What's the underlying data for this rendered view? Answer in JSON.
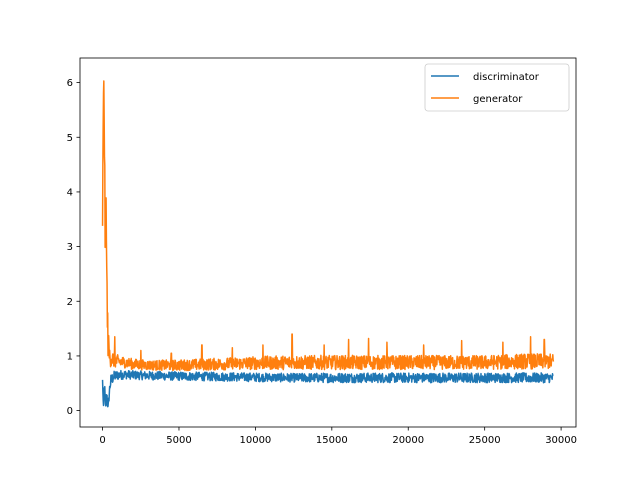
{
  "chart_data": {
    "type": "line",
    "title": "",
    "xlabel": "",
    "ylabel": "",
    "xlim": [
      -1475,
      30975
    ],
    "ylim": [
      -0.3,
      6.45
    ],
    "xticks": [
      0,
      5000,
      10000,
      15000,
      20000,
      25000,
      30000
    ],
    "yticks": [
      0,
      1,
      2,
      3,
      4,
      5,
      6
    ],
    "grid": false,
    "legend_position": "top-right",
    "series": [
      {
        "name": "discriminator",
        "color": "#1f77b4",
        "x": [
          0,
          60,
          120,
          200,
          280,
          360,
          500,
          700,
          1000,
          1500,
          2000,
          3000,
          5000,
          7500,
          10000,
          12500,
          15000,
          17500,
          20000,
          22500,
          25000,
          27500,
          29500
        ],
        "y": [
          0.55,
          0.02,
          0.45,
          0.02,
          0.3,
          0.05,
          0.5,
          0.62,
          0.65,
          0.66,
          0.65,
          0.64,
          0.63,
          0.62,
          0.61,
          0.6,
          0.6,
          0.6,
          0.6,
          0.6,
          0.6,
          0.6,
          0.6
        ],
        "band": [
          0.04,
          0.04,
          0.25,
          0.04,
          0.2,
          0.04,
          0.15,
          0.1,
          0.09,
          0.08,
          0.08,
          0.08,
          0.08,
          0.08,
          0.08,
          0.08,
          0.09,
          0.09,
          0.09,
          0.09,
          0.09,
          0.09,
          0.09
        ]
      },
      {
        "name": "generator",
        "color": "#ff7f0e",
        "x": [
          0,
          40,
          80,
          120,
          160,
          200,
          240,
          280,
          320,
          360,
          400,
          450,
          500,
          600,
          800,
          1000,
          1500,
          2000,
          3000,
          5000,
          7500,
          10000,
          12500,
          15000,
          17500,
          20000,
          22500,
          25000,
          27500,
          29500
        ],
        "y": [
          3.5,
          5.0,
          6.15,
          5.2,
          3.5,
          2.8,
          4.0,
          2.2,
          1.6,
          1.3,
          1.15,
          1.0,
          1.0,
          0.95,
          0.92,
          0.9,
          0.88,
          0.85,
          0.83,
          0.83,
          0.85,
          0.87,
          0.88,
          0.88,
          0.88,
          0.88,
          0.88,
          0.88,
          0.9,
          0.9
        ],
        "band": [
          0.3,
          0.4,
          0.1,
          0.5,
          0.6,
          0.6,
          0.2,
          0.6,
          0.5,
          0.35,
          0.25,
          0.2,
          0.2,
          0.16,
          0.14,
          0.12,
          0.1,
          0.1,
          0.09,
          0.1,
          0.11,
          0.12,
          0.13,
          0.13,
          0.13,
          0.13,
          0.13,
          0.13,
          0.14,
          0.14
        ],
        "spikes": [
          {
            "x": 800,
            "y": 1.35
          },
          {
            "x": 2500,
            "y": 1.1
          },
          {
            "x": 4500,
            "y": 1.05
          },
          {
            "x": 6500,
            "y": 1.2
          },
          {
            "x": 8500,
            "y": 1.15
          },
          {
            "x": 10500,
            "y": 1.2
          },
          {
            "x": 12400,
            "y": 1.4
          },
          {
            "x": 14500,
            "y": 1.2
          },
          {
            "x": 16100,
            "y": 1.3
          },
          {
            "x": 17400,
            "y": 1.32
          },
          {
            "x": 18600,
            "y": 1.25
          },
          {
            "x": 21000,
            "y": 1.2
          },
          {
            "x": 23500,
            "y": 1.28
          },
          {
            "x": 26200,
            "y": 1.25
          },
          {
            "x": 28000,
            "y": 1.35
          },
          {
            "x": 28900,
            "y": 1.3
          }
        ]
      }
    ]
  }
}
